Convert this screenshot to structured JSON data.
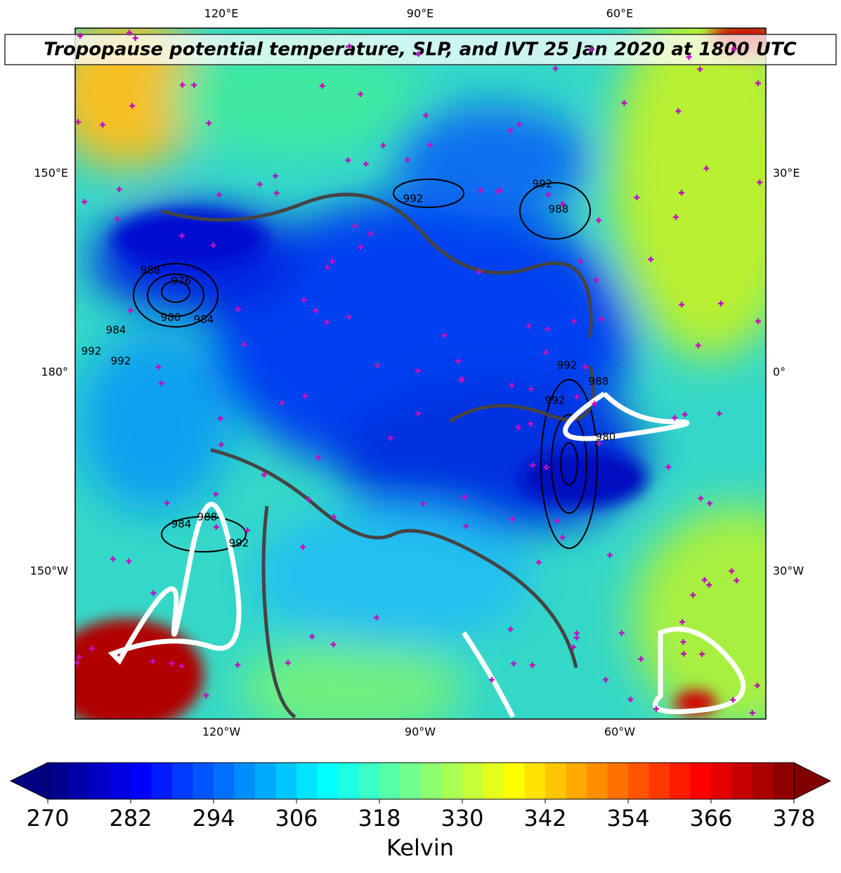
{
  "map": {
    "title": "Tropopause potential temperature, SLP, and IVT 25 Jan 2020 at 1800 UTC",
    "lon_labels": {
      "top": [
        "120°E",
        "90°E",
        "60°E"
      ],
      "bottom": [
        "120°W",
        "90°W",
        "60°W"
      ],
      "left": [
        "150°E",
        "180°",
        "150°W"
      ],
      "right": [
        "30°E",
        "0°",
        "30°W"
      ]
    },
    "contour_labels": [
      992,
      992,
      988,
      988,
      976,
      980,
      984,
      984,
      992,
      992,
      992,
      988,
      980,
      992,
      988,
      984,
      992
    ]
  },
  "colorbar": {
    "colormap": "jet",
    "range": [
      270,
      378
    ],
    "ticks": [
      270,
      282,
      294,
      306,
      318,
      330,
      342,
      354,
      366,
      378
    ],
    "extend": "both",
    "label": "Kelvin"
  }
}
